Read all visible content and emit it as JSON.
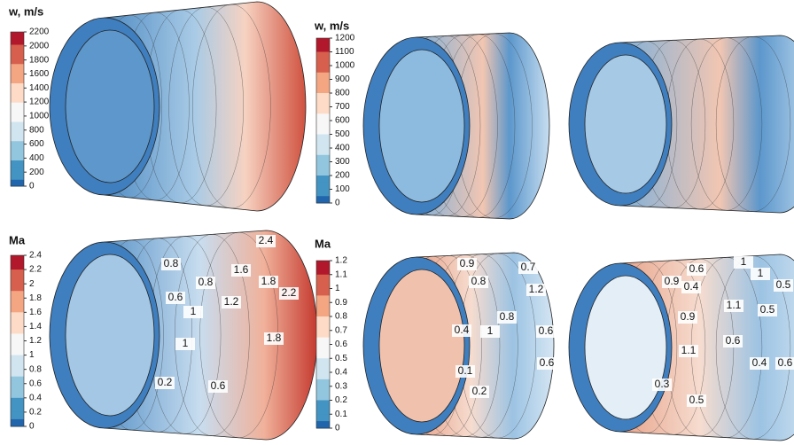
{
  "colorbars": [
    {
      "title": "w, m/s",
      "ticks": [
        0,
        200,
        400,
        600,
        800,
        1000,
        1200,
        1400,
        1600,
        1800,
        2000,
        2200
      ]
    },
    {
      "title": "w, m/s",
      "ticks": [
        0,
        100,
        200,
        300,
        400,
        500,
        600,
        700,
        800,
        900,
        1000,
        1100,
        1200
      ]
    },
    {
      "title": "Ma",
      "ticks": [
        0,
        0.2,
        0.4,
        0.6,
        0.8,
        1,
        1.2,
        1.4,
        1.6,
        1.8,
        2,
        2.2,
        2.4
      ]
    },
    {
      "title": "Ma",
      "ticks": [
        0,
        0.1,
        0.2,
        0.3,
        0.4,
        0.5,
        0.6,
        0.7,
        0.8,
        0.9,
        1,
        1.1,
        1.2
      ]
    }
  ],
  "contour_labels": [
    [
      "2.4",
      "0.8",
      "1.6",
      "0.8",
      "1.8",
      "0.6",
      "1.2",
      "2.2",
      "1",
      "1.8",
      "1",
      "0.2",
      "0.6"
    ],
    [
      "0.9",
      "0.7",
      "0.8",
      "1.2",
      "0.8",
      "0.4",
      "1",
      "0.6",
      "0.6",
      "0.1",
      "0.2"
    ],
    [
      "1",
      "0.6",
      "1",
      "0.9",
      "0.4",
      "0.5",
      "1.1",
      "0.9",
      "0.5",
      "0.6",
      "1.1",
      "0.4",
      "0.6",
      "0.3",
      "0.5"
    ]
  ]
}
